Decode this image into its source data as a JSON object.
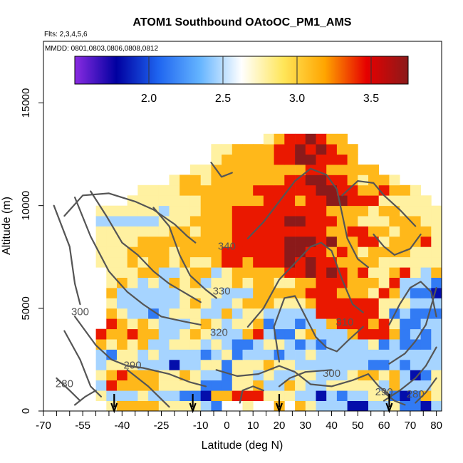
{
  "chart_data": {
    "type": "heatmap",
    "title": "ATOM1 Southbound OAtoOC_PM1_AMS",
    "subtitle_flights": "Flts: 2,3,4,5,6",
    "subtitle_dates": "MMDD: 0801,0803,0806,0808,0812",
    "xlabel": "Latitude (deg N)",
    "ylabel": "Altitude (m)",
    "xlim": [
      -70,
      82
    ],
    "ylim": [
      0,
      18000
    ],
    "x_ticks": [
      -70,
      -55,
      -40,
      -25,
      -10,
      0,
      10,
      20,
      30,
      40,
      50,
      60,
      70,
      80
    ],
    "y_ticks": [
      0,
      5000,
      10000,
      15000
    ],
    "colorbar": {
      "range": [
        1.5,
        3.75
      ],
      "ticks": [
        2.0,
        2.5,
        3.0,
        3.5
      ],
      "tick_labels": [
        "2.0",
        "2.5",
        "3.0",
        "3.5"
      ],
      "colors": [
        "#8a2be2",
        "#0000a0",
        "#1e64f0",
        "#64b4ff",
        "#ffffff",
        "#ffe65a",
        "#ffa500",
        "#e60000",
        "#8b1a1a"
      ]
    },
    "heat_grid": {
      "lat_edges_start": -62,
      "lat_step": 4,
      "alt_edges_start": 0,
      "alt_step": 500,
      "rows_low_to_high": [
        "....45555444432..4..5.54333113342213342113...",
        "...433343332215566644433132334421254321241...",
        "...365555444422244533543344444353334434454...",
        "...4565554454332443433443334554531243344465...",
        "...3444333133442444544333333322323333336...",
        "...32443433332342333233433333333333333343...",
        "...54545334443432234432323333423222323443...",
        "...65565533454333563224533356665232333333...",
        "....6545433345434452332335666564223333333...",
        "....5433234443353443333366666642322233333...",
        "....4333333454334555444566666644433333333...",
        "....53333334444333555556665554653221323334...",
        "....454343545344545544556665554633322222224...",
        "....44455334553455555667676564456435545332...",
        "...4445455454456656667676655554444444344...",
        "...4445555455556666667766565455554444343...",
        "...44445555555556666677767556645556454443...",
        "...4444444554555666666666556655455544443...",
        "...33333344455556666677666554445554443...",
        "...4444443444555666666666555545544443...",
        "......44444445555556665667766644444...",
        ".......444455555556666667766556554...",
        "..........4554555555566776654554....",
        "............445555555556655555.....",
        "..............45555566776665........",
        "..............44555566767655........",
        "...................45667655..........."
      ]
    },
    "contour_labels": [
      {
        "text": "340",
        "lat": 0,
        "alt": 8000
      },
      {
        "text": "330",
        "lat": -2,
        "alt": 5800
      },
      {
        "text": "320",
        "lat": -3,
        "alt": 3800
      },
      {
        "text": "310",
        "lat": 45,
        "alt": 4300
      },
      {
        "text": "300",
        "lat": -56,
        "alt": 4800
      },
      {
        "text": "300",
        "lat": 40,
        "alt": 1800
      },
      {
        "text": "290",
        "lat": -36,
        "alt": 2200
      },
      {
        "text": "290",
        "lat": 60,
        "alt": 900
      },
      {
        "text": "280",
        "lat": -62,
        "alt": 1300
      },
      {
        "text": "280",
        "lat": 72,
        "alt": 800
      }
    ],
    "contour_lines": [
      [
        [
          -62,
          9500
        ],
        [
          -55,
          10500
        ],
        [
          -45,
          10600
        ],
        [
          -35,
          10200
        ],
        [
          -28,
          9800
        ],
        [
          -20,
          9100
        ],
        [
          -15,
          8500
        ],
        [
          -12,
          8200
        ]
      ],
      [
        [
          -66,
          10000
        ],
        [
          -60,
          8000
        ],
        [
          -58,
          6200
        ],
        [
          -56,
          5200
        ]
      ],
      [
        [
          -52,
          10700
        ],
        [
          -46,
          9500
        ],
        [
          -40,
          8200
        ],
        [
          -34,
          7600
        ],
        [
          -28,
          6800
        ],
        [
          -22,
          6200
        ],
        [
          -14,
          5600
        ],
        [
          -10,
          5300
        ]
      ],
      [
        [
          -58,
          10400
        ],
        [
          -52,
          8500
        ],
        [
          -45,
          6800
        ],
        [
          -38,
          5800
        ],
        [
          -32,
          5200
        ],
        [
          -25,
          4600
        ],
        [
          -18,
          4400
        ],
        [
          -10,
          4200
        ]
      ],
      [
        [
          -58,
          4600
        ],
        [
          -50,
          3200
        ],
        [
          -44,
          2500
        ],
        [
          -38,
          2200
        ],
        [
          -32,
          2100
        ],
        [
          -22,
          1800
        ],
        [
          -14,
          1400
        ],
        [
          -8,
          1200
        ]
      ],
      [
        [
          -62,
          3900
        ],
        [
          -56,
          2500
        ],
        [
          -52,
          1200
        ],
        [
          -48,
          700
        ]
      ],
      [
        [
          -65,
          1600
        ],
        [
          -60,
          1000
        ],
        [
          -56,
          500
        ]
      ],
      [
        [
          -38,
          2000
        ],
        [
          -30,
          1200
        ],
        [
          -26,
          700
        ],
        [
          -22,
          200
        ]
      ],
      [
        [
          -28,
          9900
        ],
        [
          -22,
          9000
        ],
        [
          -18,
          7600
        ],
        [
          -14,
          6600
        ],
        [
          -8,
          5900
        ],
        [
          -4,
          5500
        ]
      ],
      [
        [
          -6,
          12100
        ],
        [
          -2,
          11400
        ],
        [
          2,
          11600
        ]
      ],
      [
        [
          8,
          8400
        ],
        [
          14,
          9200
        ],
        [
          20,
          10200
        ],
        [
          26,
          11200
        ],
        [
          32,
          11800
        ],
        [
          38,
          11500
        ],
        [
          42,
          10800
        ],
        [
          44,
          9600
        ],
        [
          46,
          8400
        ],
        [
          50,
          7400
        ],
        [
          54,
          7000
        ]
      ],
      [
        [
          8,
          4100
        ],
        [
          14,
          5000
        ],
        [
          20,
          6400
        ],
        [
          26,
          7200
        ],
        [
          32,
          8000
        ],
        [
          36,
          8200
        ],
        [
          40,
          7800
        ],
        [
          44,
          6400
        ],
        [
          48,
          5200
        ],
        [
          52,
          4800
        ]
      ],
      [
        [
          20,
          2400
        ],
        [
          18,
          4100
        ],
        [
          22,
          5500
        ],
        [
          26,
          5600
        ],
        [
          30,
          4600
        ],
        [
          34,
          3600
        ],
        [
          38,
          3100
        ],
        [
          42,
          2900
        ],
        [
          46,
          3400
        ],
        [
          52,
          4100
        ]
      ],
      [
        [
          -4,
          2000
        ],
        [
          4,
          1700
        ],
        [
          12,
          1800
        ],
        [
          20,
          2200
        ],
        [
          26,
          1900
        ],
        [
          32,
          1300
        ],
        [
          40,
          1200
        ],
        [
          48,
          1500
        ],
        [
          54,
          1800
        ],
        [
          58,
          1200
        ],
        [
          62,
          800
        ]
      ],
      [
        [
          20,
          1200
        ],
        [
          24,
          1600
        ],
        [
          30,
          1900
        ],
        [
          40,
          2000
        ]
      ],
      [
        [
          60,
          500
        ],
        [
          66,
          1000
        ],
        [
          72,
          1600
        ],
        [
          76,
          2200
        ],
        [
          80,
          3100
        ]
      ],
      [
        [
          62,
          2300
        ],
        [
          68,
          2800
        ],
        [
          72,
          3400
        ],
        [
          76,
          4200
        ],
        [
          80,
          6000
        ]
      ],
      [
        [
          56,
          8600
        ],
        [
          60,
          8000
        ],
        [
          64,
          7600
        ],
        [
          70,
          7900
        ],
        [
          74,
          8600
        ]
      ],
      [
        [
          44,
          10500
        ],
        [
          50,
          11200
        ],
        [
          56,
          11100
        ],
        [
          60,
          10500
        ],
        [
          66,
          9800
        ],
        [
          72,
          9000
        ]
      ],
      [
        [
          62,
          4200
        ],
        [
          66,
          5200
        ],
        [
          70,
          6000
        ],
        [
          74,
          6300
        ],
        [
          78,
          5800
        ],
        [
          80,
          4600
        ]
      ],
      [
        [
          -58,
          300
        ],
        [
          -54,
          700
        ],
        [
          -50,
          1000
        ]
      ],
      [
        [
          5,
          400
        ],
        [
          6,
          1000
        ],
        [
          10,
          1200
        ],
        [
          14,
          1000
        ]
      ],
      [
        [
          60,
          900
        ],
        [
          64,
          500
        ],
        [
          68,
          300
        ]
      ],
      [
        [
          72,
          400
        ],
        [
          76,
          900
        ],
        [
          80,
          1600
        ]
      ]
    ],
    "arrow_lats": [
      -43,
      -13,
      20,
      62
    ]
  }
}
